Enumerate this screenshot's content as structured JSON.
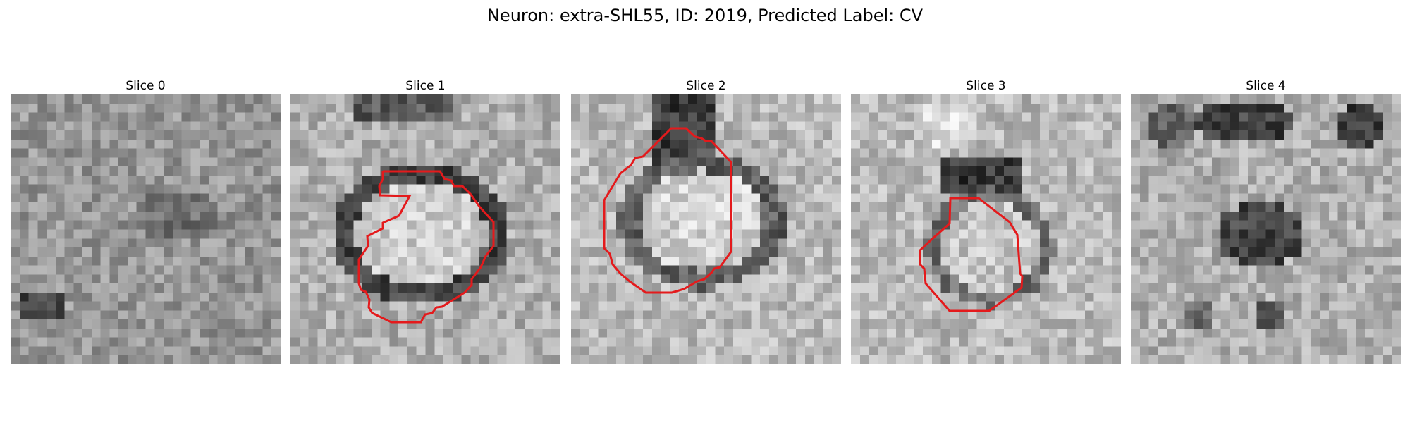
{
  "figure": {
    "title": "Neuron: extra-SHL55, ID: 2019, Predicted Label: CV"
  },
  "slices": [
    {
      "title": "Slice 0",
      "has_contour": false
    },
    {
      "title": "Slice 1",
      "has_contour": true
    },
    {
      "title": "Slice 2",
      "has_contour": true
    },
    {
      "title": "Slice 3",
      "has_contour": true
    },
    {
      "title": "Slice 4",
      "has_contour": false
    }
  ],
  "colors": {
    "contour": "#e41a1c"
  }
}
